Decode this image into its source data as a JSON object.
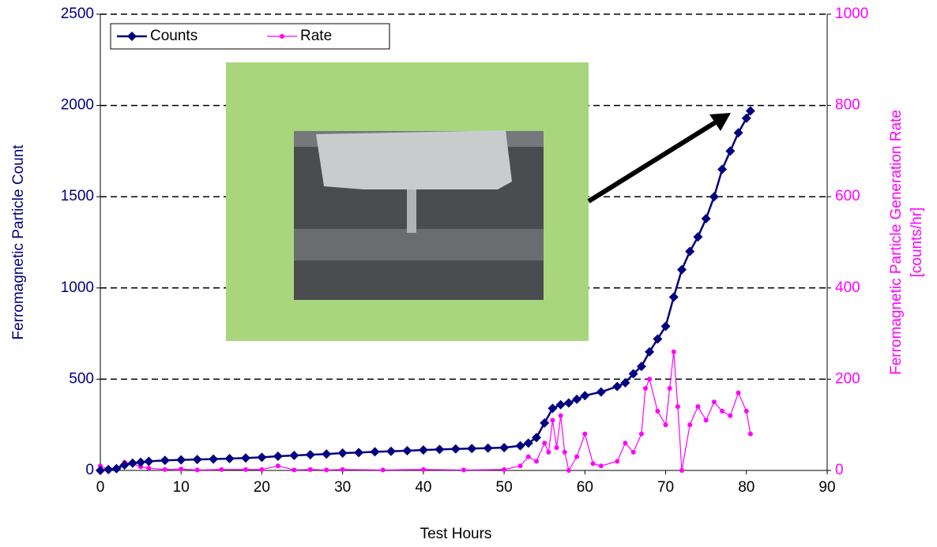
{
  "chart_data": {
    "type": "line",
    "xlabel": "Test Hours",
    "ylabel": "Ferromagnetic Particle Count",
    "y2label": [
      "Ferromagnetic Particle Generation Rate",
      "[counts/hr]"
    ],
    "xlim": [
      0,
      90
    ],
    "xticks": [
      0,
      10,
      20,
      30,
      40,
      50,
      60,
      70,
      80,
      90
    ],
    "ylim": [
      0,
      2500
    ],
    "yticks": [
      0,
      500,
      1000,
      1500,
      2000,
      2500
    ],
    "y2lim": [
      0,
      1000
    ],
    "y2ticks": [
      0,
      200,
      400,
      600,
      800,
      1000
    ],
    "grid": true,
    "legend": "top-left",
    "series": [
      {
        "name": "Counts",
        "color": "#000080",
        "marker": "diamond",
        "x": [
          0,
          1,
          2,
          3,
          4,
          5,
          6,
          8,
          10,
          12,
          14,
          16,
          18,
          20,
          22,
          24,
          26,
          28,
          30,
          32,
          34,
          36,
          38,
          40,
          42,
          44,
          46,
          48,
          50,
          52,
          53,
          54,
          55,
          56,
          57,
          58,
          59,
          60,
          62,
          64,
          65,
          66,
          67,
          68,
          69,
          70,
          71,
          72,
          73,
          74,
          75,
          76,
          77,
          78,
          79,
          80,
          80.5
        ],
        "values": [
          0,
          5,
          10,
          30,
          40,
          45,
          50,
          55,
          58,
          60,
          62,
          65,
          68,
          72,
          78,
          82,
          86,
          90,
          95,
          98,
          102,
          105,
          108,
          112,
          115,
          118,
          120,
          122,
          125,
          135,
          150,
          180,
          260,
          340,
          360,
          370,
          390,
          410,
          430,
          460,
          480,
          530,
          570,
          650,
          720,
          790,
          950,
          1100,
          1200,
          1280,
          1380,
          1500,
          1650,
          1750,
          1850,
          1930,
          1970
        ]
      },
      {
        "name": "Rate",
        "color": "#ff00ff",
        "marker": "circle",
        "axis": "y2",
        "x": [
          0,
          1,
          2,
          3,
          4,
          5,
          6,
          8,
          10,
          12,
          15,
          18,
          20,
          22,
          24,
          26,
          28,
          30,
          35,
          40,
          45,
          50,
          52,
          53,
          54,
          55,
          55.5,
          56,
          56.5,
          57,
          57.5,
          58,
          59,
          60,
          61,
          62,
          64,
          65,
          66,
          67,
          67.5,
          68,
          69,
          70,
          70.5,
          71,
          71.5,
          72,
          73,
          74,
          75,
          76,
          77,
          78,
          79,
          80,
          80.5
        ],
        "values": [
          10,
          2,
          5,
          18,
          15,
          8,
          5,
          2,
          3,
          1,
          2,
          2,
          2,
          10,
          1,
          2,
          1,
          2,
          1,
          2,
          1,
          2,
          10,
          30,
          20,
          60,
          40,
          110,
          50,
          120,
          40,
          0,
          30,
          80,
          15,
          10,
          20,
          60,
          40,
          80,
          180,
          200,
          130,
          100,
          180,
          260,
          140,
          0,
          100,
          140,
          110,
          150,
          130,
          120,
          170,
          130,
          80
        ]
      }
    ]
  }
}
